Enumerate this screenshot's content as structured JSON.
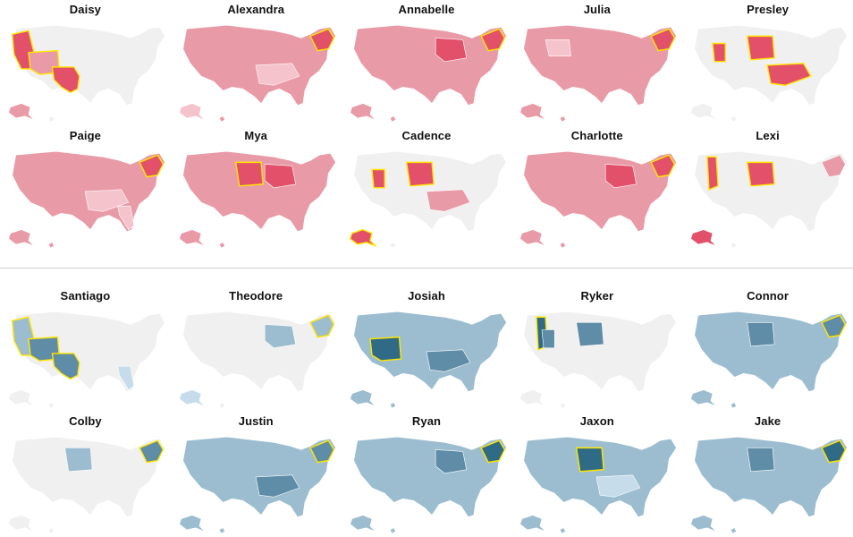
{
  "colors": {
    "background_state": "#f0f0f0",
    "girls_light": "#f5c3cc",
    "girls_mid": "#e99aa7",
    "girls_dark": "#e3506a",
    "boys_light": "#c6dceb",
    "boys_mid": "#9cbdd0",
    "boys_dark": "#5f8ca6",
    "boys_darkest": "#2f6a86",
    "highlight_outline": "#ffe600"
  },
  "sections": [
    {
      "id": "girls",
      "maps": [
        {
          "name": "Daisy",
          "base": "none",
          "regions": {
            "west": "dark",
            "southwest": "mid",
            "texas": "dark",
            "alaska": "mid"
          },
          "highlight": [
            "west",
            "southwest",
            "texas"
          ]
        },
        {
          "name": "Alexandra",
          "base": "mid",
          "regions": {
            "northeast": "dark",
            "alaska": "light",
            "south": "light"
          },
          "highlight": [
            "northeast"
          ]
        },
        {
          "name": "Annabelle",
          "base": "mid",
          "regions": {
            "northeast": "dark",
            "midwest": "dark"
          },
          "highlight": [
            "northeast"
          ]
        },
        {
          "name": "Julia",
          "base": "mid",
          "regions": {
            "northeast": "dark",
            "mountain": "light"
          },
          "highlight": [
            "northeast"
          ]
        },
        {
          "name": "Presley",
          "base": "none",
          "regions": {
            "plains": "dark",
            "utah": "dark",
            "south": "dark"
          },
          "highlight": [
            "plains",
            "utah",
            "south"
          ]
        },
        {
          "name": "Paige",
          "base": "mid",
          "regions": {
            "northeast": "dark",
            "south": "light",
            "florida": "light"
          },
          "highlight": [
            "northeast"
          ]
        },
        {
          "name": "Mya",
          "base": "mid",
          "regions": {
            "plains": "dark",
            "midwest": "dark"
          },
          "highlight": [
            "plains"
          ]
        },
        {
          "name": "Cadence",
          "base": "none",
          "regions": {
            "plains": "dark",
            "utah": "dark",
            "south": "mid",
            "alaska": "dark"
          },
          "highlight": [
            "plains",
            "utah",
            "alaska"
          ]
        },
        {
          "name": "Charlotte",
          "base": "mid",
          "regions": {
            "northeast": "dark",
            "midwest": "dark"
          },
          "highlight": [
            "northeast"
          ]
        },
        {
          "name": "Lexi",
          "base": "none",
          "regions": {
            "idaho": "dark",
            "plains": "dark",
            "northeast": "mid",
            "alaska": "dark"
          },
          "highlight": [
            "idaho",
            "plains"
          ]
        }
      ]
    },
    {
      "id": "boys",
      "maps": [
        {
          "name": "Santiago",
          "base": "none",
          "regions": {
            "west": "mid",
            "southwest": "dark",
            "texas": "dark",
            "florida": "light"
          },
          "highlight": [
            "west",
            "southwest",
            "texas"
          ]
        },
        {
          "name": "Theodore",
          "base": "none",
          "regions": {
            "northeast": "mid",
            "midwest": "mid",
            "alaska": "light"
          },
          "highlight": [
            "northeast"
          ]
        },
        {
          "name": "Josiah",
          "base": "mid",
          "regions": {
            "southwest": "darkest",
            "south": "dark"
          },
          "highlight": [
            "southwest"
          ]
        },
        {
          "name": "Ryker",
          "base": "none",
          "regions": {
            "idaho": "darkest",
            "plains": "dark",
            "utah": "dark"
          },
          "highlight": [
            "idaho"
          ]
        },
        {
          "name": "Connor",
          "base": "mid",
          "regions": {
            "northeast": "dark",
            "plains": "dark"
          },
          "highlight": [
            "northeast"
          ]
        },
        {
          "name": "Colby",
          "base": "none",
          "regions": {
            "plains": "mid",
            "northeast": "dark"
          },
          "highlight": [
            "northeast"
          ]
        },
        {
          "name": "Justin",
          "base": "mid",
          "regions": {
            "northeast": "dark",
            "south": "dark"
          },
          "highlight": [
            "northeast"
          ]
        },
        {
          "name": "Ryan",
          "base": "mid",
          "regions": {
            "northeast": "darkest",
            "midwest": "dark"
          },
          "highlight": [
            "northeast"
          ]
        },
        {
          "name": "Jaxon",
          "base": "mid",
          "regions": {
            "plains": "darkest",
            "south": "light"
          },
          "highlight": [
            "plains"
          ]
        },
        {
          "name": "Jake",
          "base": "mid",
          "regions": {
            "northeast": "darkest",
            "plains": "dark"
          },
          "highlight": [
            "northeast"
          ]
        }
      ]
    }
  ]
}
